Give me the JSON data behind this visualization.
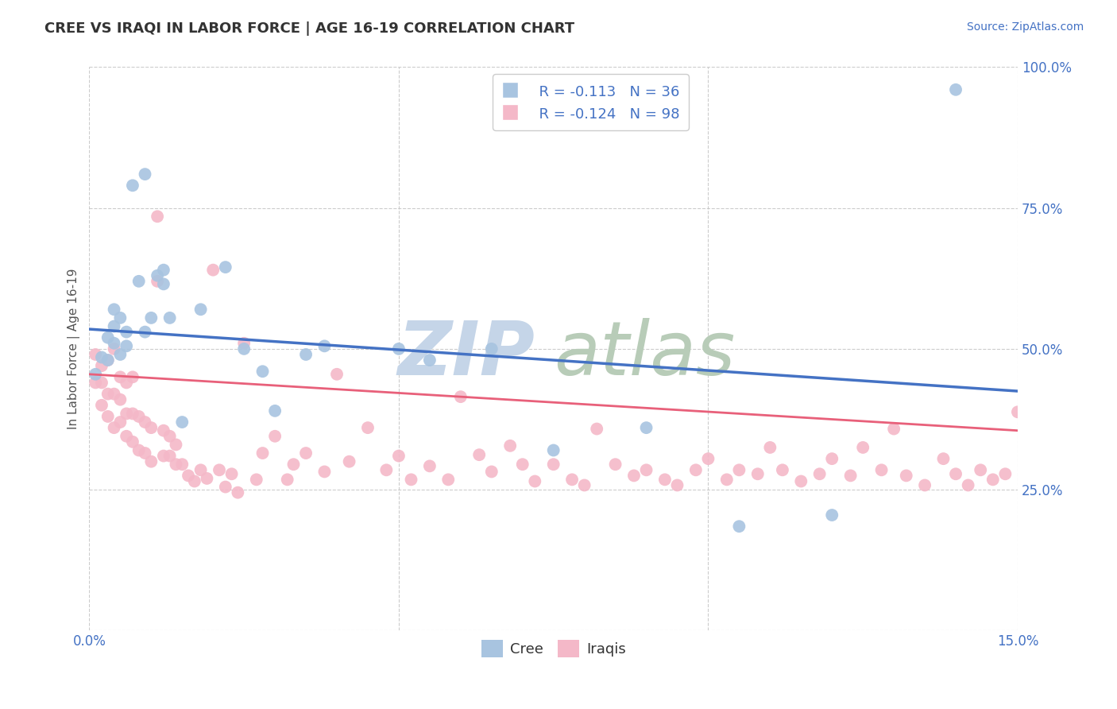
{
  "title": "CREE VS IRAQI IN LABOR FORCE | AGE 16-19 CORRELATION CHART",
  "source": "Source: ZipAtlas.com",
  "ylabel": "In Labor Force | Age 16-19",
  "xlim": [
    0.0,
    0.15
  ],
  "ylim": [
    0.0,
    1.0
  ],
  "cree_color": "#A8C4E0",
  "iraqi_color": "#F4B8C8",
  "cree_line_color": "#4472C4",
  "iraqi_line_color": "#E8607A",
  "watermark_zip": "ZIP",
  "watermark_atlas": "atlas",
  "watermark_color": "#D0DCF0",
  "legend_r_cree": "R = -0.113",
  "legend_n_cree": "N = 36",
  "legend_r_iraqi": "R = -0.124",
  "legend_n_iraqi": "N = 98",
  "cree_x": [
    0.001,
    0.002,
    0.003,
    0.003,
    0.004,
    0.004,
    0.004,
    0.005,
    0.005,
    0.006,
    0.006,
    0.007,
    0.008,
    0.009,
    0.009,
    0.01,
    0.011,
    0.012,
    0.012,
    0.013,
    0.015,
    0.018,
    0.022,
    0.025,
    0.028,
    0.03,
    0.035,
    0.038,
    0.05,
    0.055,
    0.065,
    0.075,
    0.09,
    0.105,
    0.12,
    0.14
  ],
  "cree_y": [
    0.455,
    0.485,
    0.52,
    0.48,
    0.51,
    0.54,
    0.57,
    0.49,
    0.555,
    0.505,
    0.53,
    0.79,
    0.62,
    0.53,
    0.81,
    0.555,
    0.63,
    0.615,
    0.64,
    0.555,
    0.37,
    0.57,
    0.645,
    0.5,
    0.46,
    0.39,
    0.49,
    0.505,
    0.5,
    0.48,
    0.5,
    0.32,
    0.36,
    0.185,
    0.205,
    0.96
  ],
  "iraqi_x": [
    0.001,
    0.001,
    0.002,
    0.002,
    0.002,
    0.003,
    0.003,
    0.003,
    0.004,
    0.004,
    0.004,
    0.005,
    0.005,
    0.005,
    0.006,
    0.006,
    0.006,
    0.007,
    0.007,
    0.007,
    0.008,
    0.008,
    0.009,
    0.009,
    0.01,
    0.01,
    0.011,
    0.011,
    0.012,
    0.012,
    0.013,
    0.013,
    0.014,
    0.014,
    0.015,
    0.016,
    0.017,
    0.018,
    0.019,
    0.02,
    0.021,
    0.022,
    0.023,
    0.024,
    0.025,
    0.027,
    0.028,
    0.03,
    0.032,
    0.033,
    0.035,
    0.038,
    0.04,
    0.042,
    0.045,
    0.048,
    0.05,
    0.052,
    0.055,
    0.058,
    0.06,
    0.063,
    0.065,
    0.068,
    0.07,
    0.072,
    0.075,
    0.078,
    0.08,
    0.082,
    0.085,
    0.088,
    0.09,
    0.093,
    0.095,
    0.098,
    0.1,
    0.103,
    0.105,
    0.108,
    0.11,
    0.112,
    0.115,
    0.118,
    0.12,
    0.123,
    0.125,
    0.128,
    0.13,
    0.132,
    0.135,
    0.138,
    0.14,
    0.142,
    0.144,
    0.146,
    0.148,
    0.15
  ],
  "iraqi_y": [
    0.44,
    0.49,
    0.4,
    0.44,
    0.47,
    0.38,
    0.42,
    0.48,
    0.36,
    0.42,
    0.5,
    0.37,
    0.41,
    0.45,
    0.345,
    0.385,
    0.44,
    0.335,
    0.385,
    0.45,
    0.32,
    0.38,
    0.315,
    0.37,
    0.3,
    0.36,
    0.735,
    0.62,
    0.31,
    0.355,
    0.31,
    0.345,
    0.295,
    0.33,
    0.295,
    0.275,
    0.265,
    0.285,
    0.27,
    0.64,
    0.285,
    0.255,
    0.278,
    0.245,
    0.51,
    0.268,
    0.315,
    0.345,
    0.268,
    0.295,
    0.315,
    0.282,
    0.455,
    0.3,
    0.36,
    0.285,
    0.31,
    0.268,
    0.292,
    0.268,
    0.415,
    0.312,
    0.282,
    0.328,
    0.295,
    0.265,
    0.295,
    0.268,
    0.258,
    0.358,
    0.295,
    0.275,
    0.285,
    0.268,
    0.258,
    0.285,
    0.305,
    0.268,
    0.285,
    0.278,
    0.325,
    0.285,
    0.265,
    0.278,
    0.305,
    0.275,
    0.325,
    0.285,
    0.358,
    0.275,
    0.258,
    0.305,
    0.278,
    0.258,
    0.285,
    0.268,
    0.278,
    0.388
  ]
}
